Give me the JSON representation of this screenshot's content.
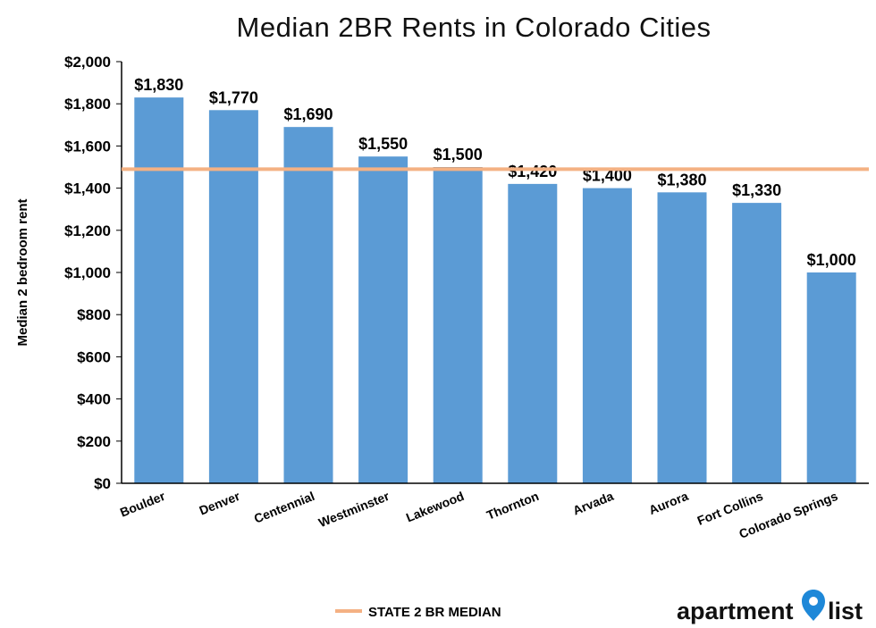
{
  "colors": {
    "bar": "#5b9bd5",
    "highlight_bar_top": "#8a8f96",
    "reference_line": "#f4b183",
    "axis": "#000000",
    "logo_pin": "#1e88d8"
  },
  "chart_data": {
    "type": "bar",
    "title": "Median 2BR Rents in Colorado Cities",
    "xlabel": "",
    "ylabel": "Median 2 bedroom rent",
    "ylim": [
      0,
      2000
    ],
    "yticks": [
      "$0",
      "$200",
      "$400",
      "$600",
      "$800",
      "$1,000",
      "$1,200",
      "$1,400",
      "$1,600",
      "$1,800",
      "$2,000"
    ],
    "ytick_values": [
      0,
      200,
      400,
      600,
      800,
      1000,
      1200,
      1400,
      1600,
      1800,
      2000
    ],
    "categories": [
      "Boulder",
      "Denver",
      "Centennial",
      "Westminster",
      "Lakewood",
      "Thornton",
      "Arvada",
      "Aurora",
      "Fort Collins",
      "Colorado Springs"
    ],
    "values": [
      1830,
      1770,
      1690,
      1550,
      1500,
      1420,
      1400,
      1380,
      1330,
      1000
    ],
    "data_labels": [
      "$1,830",
      "$1,770",
      "$1,690",
      "$1,550",
      "$1,500",
      "$1,420",
      "$1,400",
      "$1,380",
      "$1,330",
      "$1,000"
    ],
    "reference_line": {
      "name": "STATE 2 BR MEDIAN",
      "value": 1490
    },
    "legend": "bottom",
    "grid": false
  },
  "branding": {
    "logo_left": "apartment",
    "logo_right": "list"
  }
}
